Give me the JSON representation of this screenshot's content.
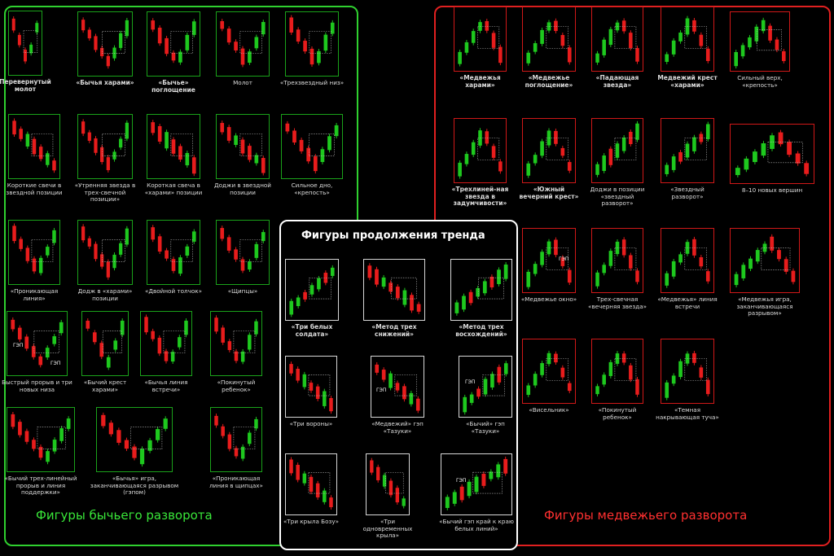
{
  "titles": {
    "bull": "Фигуры бычьего разворота",
    "bear": "Фигуры медвежьего разворота",
    "cont": "Фигуры продолжения тренда"
  },
  "gap_label": "ГЭП",
  "colors": {
    "bull": "#1ec81e",
    "bear": "#e81c1c",
    "panel_green": "#2fd02f",
    "panel_red": "#e02020"
  },
  "bull": [
    {
      "label": "Перевернутый молот",
      "bold": true,
      "kind": "down-up"
    },
    {
      "label": "«Бычья харами»",
      "bold": true,
      "kind": "down-up"
    },
    {
      "label": "«Бычье» поглощение",
      "bold": true,
      "kind": "down-up"
    },
    {
      "label": "Молот",
      "bold": false,
      "kind": "down-up"
    },
    {
      "label": "«Трехзвездный низ»",
      "bold": false,
      "kind": "down-up"
    },
    {
      "label": "Короткие свечи в звездной позиции",
      "bold": false,
      "kind": "down"
    },
    {
      "label": "«Утренняя звезда в трех-свечной позиции»",
      "bold": false,
      "kind": "down-up"
    },
    {
      "label": "Короткая свеча в «харами» позиции",
      "bold": false,
      "kind": "down"
    },
    {
      "label": "Доджи в звездной позиции",
      "bold": false,
      "kind": "down"
    },
    {
      "label": "Сильное дно, «крепость»",
      "bold": false,
      "kind": "down-up"
    },
    {
      "label": "«Проникающая линия»",
      "bold": false,
      "kind": "down-up"
    },
    {
      "label": "Додж в «харами» позиции",
      "bold": false,
      "kind": "down-up"
    },
    {
      "label": "«Двойной толчок»",
      "bold": false,
      "kind": "down-up"
    },
    {
      "label": "«Щипцы»",
      "bold": false,
      "kind": "down-up"
    },
    {
      "label": "Быстрый прорыв и три новых низа",
      "bold": false,
      "kind": "down-up"
    },
    {
      "label": "«Бычий крест харами»",
      "bold": false,
      "kind": "down-up"
    },
    {
      "label": "«Бычья линия встречи»",
      "bold": false,
      "kind": "down-up"
    },
    {
      "label": "«Покинутый ребенок»",
      "bold": false,
      "kind": "down-up"
    },
    {
      "label": "«Бычий трех-линейный прорыв и линия поддержки»",
      "bold": false,
      "kind": "down-up"
    },
    {
      "label": "«Бычья» игра, заканчивающаяся разрывом (гэпом)",
      "bold": false,
      "kind": "down-up"
    },
    {
      "label": "«Проникающая линия в щипцах»",
      "bold": false,
      "kind": "down-up"
    }
  ],
  "bear": [
    {
      "label": "«Медвежья харами»",
      "bold": true,
      "kind": "up-down"
    },
    {
      "label": "«Медвежье поглощение»",
      "bold": true,
      "kind": "up-down"
    },
    {
      "label": "«Падающая звезда»",
      "bold": true,
      "kind": "up-down"
    },
    {
      "label": "Медвежий крест «харами»",
      "bold": true,
      "kind": "up-down"
    },
    {
      "label": "Сильный верх, «крепость»",
      "bold": false,
      "kind": "up-down"
    },
    {
      "label": "«Трехлиней-ная звезда в задумчивости»",
      "bold": true,
      "kind": "up-down"
    },
    {
      "label": "«Южный вечерний крест»",
      "bold": true,
      "kind": "up-down"
    },
    {
      "label": "Доджи в позиции «звездный разворот»",
      "bold": false,
      "kind": "up"
    },
    {
      "label": "«Звездный разворот»",
      "bold": false,
      "kind": "up"
    },
    {
      "label": "8–10 новых вершин",
      "bold": false,
      "kind": "up-down"
    },
    {
      "label": "«Медвежье окно»",
      "bold": false,
      "kind": "up-down"
    },
    {
      "label": "Трех-свечная «вечерняя звезда»",
      "bold": false,
      "kind": "up-down"
    },
    {
      "label": "«Медвежья» линия встречи",
      "bold": false,
      "kind": "up-down"
    },
    {
      "label": "«Медвежья игра, заканчивающаяся разрывом»",
      "bold": false,
      "kind": "up-down"
    },
    {
      "label": "«Висельник»",
      "bold": false,
      "kind": "up-down"
    },
    {
      "label": "«Покинутый ребенок»",
      "bold": false,
      "kind": "up-down"
    },
    {
      "label": "«Темная накрывающая туча»",
      "bold": false,
      "kind": "up-down"
    }
  ],
  "cont": [
    {
      "label": "«Три белых солдата»",
      "bold": true,
      "kind": "up"
    },
    {
      "label": "«Метод трех снижений»",
      "bold": true,
      "kind": "down"
    },
    {
      "label": "«Метод трех восхождений»",
      "bold": true,
      "kind": "up"
    },
    {
      "label": "«Три вороны»",
      "bold": false,
      "kind": "down"
    },
    {
      "label": "«Медвежий» гэп «Тазуки»",
      "bold": false,
      "kind": "down"
    },
    {
      "label": "«Бычий» гэп «Тазуки»",
      "bold": false,
      "kind": "up"
    },
    {
      "label": "«Три крыла Бозу»",
      "bold": false,
      "kind": "down"
    },
    {
      "label": "«Три одновременных крыла»",
      "bold": false,
      "kind": "down"
    },
    {
      "label": "«Бычий гэп край к краю белых линий»",
      "bold": false,
      "kind": "up"
    }
  ]
}
